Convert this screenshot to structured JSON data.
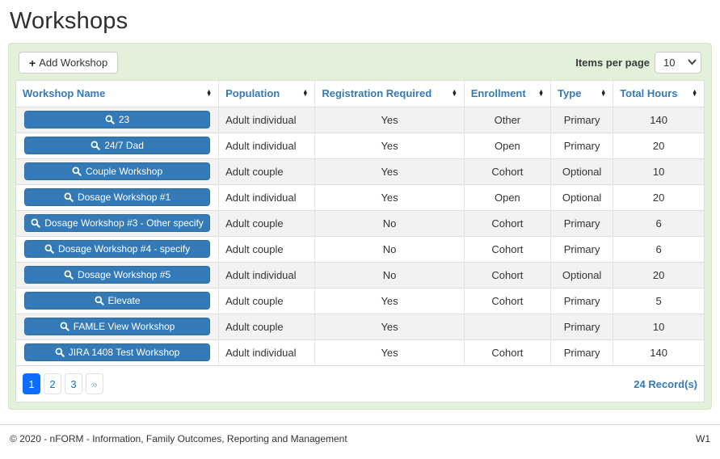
{
  "page": {
    "title": "Workshops"
  },
  "toolbar": {
    "add_button_label": "Add Workshop",
    "add_button_icon": "plus-icon",
    "items_per_page_label": "Items per page",
    "items_per_page_value": "10"
  },
  "table": {
    "columns": [
      {
        "label": "Workshop Name"
      },
      {
        "label": "Population"
      },
      {
        "label": "Registration Required"
      },
      {
        "label": "Enrollment"
      },
      {
        "label": "Type"
      },
      {
        "label": "Total Hours"
      }
    ],
    "rows": [
      {
        "name": "23",
        "population": "Adult individual",
        "registration_required": "Yes",
        "enrollment": "Other",
        "type": "Primary",
        "total_hours": "140"
      },
      {
        "name": "24/7 Dad",
        "population": "Adult individual",
        "registration_required": "Yes",
        "enrollment": "Open",
        "type": "Primary",
        "total_hours": "20"
      },
      {
        "name": "Couple Workshop",
        "population": "Adult couple",
        "registration_required": "Yes",
        "enrollment": "Cohort",
        "type": "Optional",
        "total_hours": "10"
      },
      {
        "name": "Dosage Workshop #1",
        "population": "Adult individual",
        "registration_required": "Yes",
        "enrollment": "Open",
        "type": "Optional",
        "total_hours": "20"
      },
      {
        "name": "Dosage Workshop #3 - Other specify",
        "population": "Adult couple",
        "registration_required": "No",
        "enrollment": "Cohort",
        "type": "Primary",
        "total_hours": "6"
      },
      {
        "name": "Dosage Workshop #4 - specify",
        "population": "Adult couple",
        "registration_required": "No",
        "enrollment": "Cohort",
        "type": "Primary",
        "total_hours": "6"
      },
      {
        "name": "Dosage Workshop #5",
        "population": "Adult individual",
        "registration_required": "No",
        "enrollment": "Cohort",
        "type": "Optional",
        "total_hours": "20"
      },
      {
        "name": "Elevate",
        "population": "Adult couple",
        "registration_required": "Yes",
        "enrollment": "Cohort",
        "type": "Primary",
        "total_hours": "5"
      },
      {
        "name": "FAMLE View Workshop",
        "population": "Adult couple",
        "registration_required": "Yes",
        "enrollment": "",
        "type": "Primary",
        "total_hours": "10"
      },
      {
        "name": "JIRA 1408 Test Workshop",
        "population": "Adult individual",
        "registration_required": "Yes",
        "enrollment": "Cohort",
        "type": "Primary",
        "total_hours": "140"
      }
    ]
  },
  "pagination": {
    "pages": [
      "1",
      "2",
      "3",
      "»"
    ],
    "active_page": "1",
    "records_label": "24 Record(s)"
  },
  "footer": {
    "copyright": "© 2020 - nFORM - Information, Family Outcomes, Reporting and Management",
    "version": "W1"
  },
  "colors": {
    "accent_blue": "#337ab7",
    "panel_green": "#e3f0da",
    "active_page_blue": "#0d6efd",
    "row_alt_gray": "#f2f2f2",
    "border_gray": "#dddddd"
  }
}
